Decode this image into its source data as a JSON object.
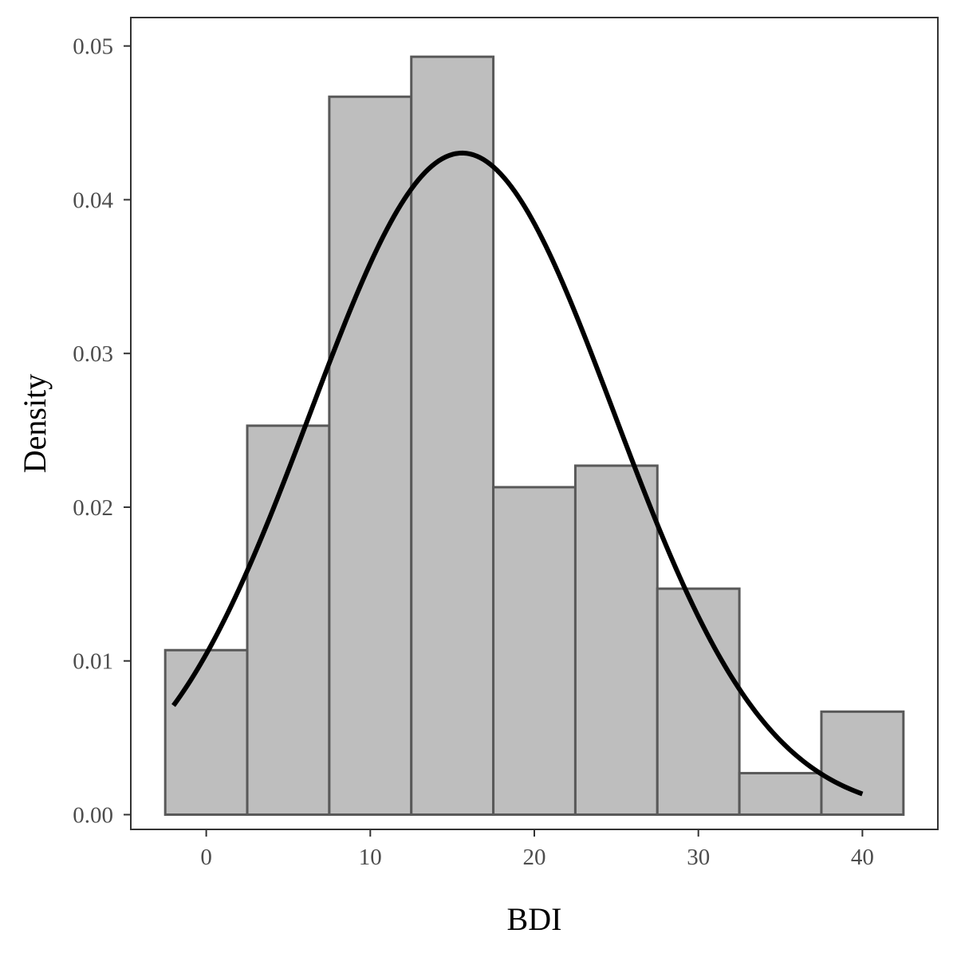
{
  "chart_data": {
    "type": "bar",
    "title": "",
    "xlabel": "BDI",
    "ylabel": "Density",
    "xlim": [
      -4.6,
      44.6
    ],
    "ylim": [
      -0.00096,
      0.05185
    ],
    "x_ticks": [
      0,
      10,
      20,
      30,
      40
    ],
    "x_tick_labels": [
      "0",
      "10",
      "20",
      "30",
      "40"
    ],
    "y_ticks": [
      0.0,
      0.01,
      0.02,
      0.03,
      0.04,
      0.05
    ],
    "y_tick_labels": [
      "0.00",
      "0.01",
      "0.02",
      "0.03",
      "0.04",
      "0.05"
    ],
    "bin_width": 5,
    "bins": [
      {
        "start": -2.5,
        "end": 2.5,
        "density": 0.0107
      },
      {
        "start": 2.5,
        "end": 7.5,
        "density": 0.0253
      },
      {
        "start": 7.5,
        "end": 12.5,
        "density": 0.0467
      },
      {
        "start": 12.5,
        "end": 17.5,
        "density": 0.0493
      },
      {
        "start": 17.5,
        "end": 22.5,
        "density": 0.0213
      },
      {
        "start": 22.5,
        "end": 27.5,
        "density": 0.0227
      },
      {
        "start": 27.5,
        "end": 32.5,
        "density": 0.0147
      },
      {
        "start": 32.5,
        "end": 37.5,
        "density": 0.0027
      },
      {
        "start": 37.5,
        "end": 42.5,
        "density": 0.0067
      }
    ],
    "normal_curve": {
      "mean": 15.6,
      "sd": 9.27,
      "x_range": [
        -2,
        40
      ],
      "color": "#000000"
    },
    "bar_fill": "#bebebe",
    "bar_stroke": "#595959",
    "grid": false,
    "legend": "none"
  }
}
